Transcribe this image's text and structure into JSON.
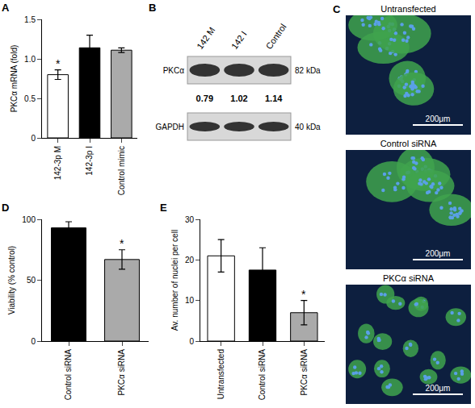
{
  "chart_data": [
    {
      "panel": "A",
      "type": "bar",
      "categories": [
        "142-3p M",
        "142-3p I",
        "Control mimic"
      ],
      "values": [
        0.8,
        1.14,
        1.11
      ],
      "error": [
        0.06,
        0.16,
        0.03
      ],
      "colors": [
        "#ffffff",
        "#000000",
        "#aaaaaa"
      ],
      "y_label": "PKCα mRNA (fold)",
      "ylim": [
        0,
        1.5
      ],
      "yticks": [
        0,
        0.5,
        {
          "value": 1,
          "label": "1.0"
        },
        1.5
      ],
      "annotations": [
        {
          "category": "142-3p M",
          "text": "*"
        }
      ],
      "grid": false
    },
    {
      "panel": "D",
      "type": "bar",
      "categories": [
        "Control siRNA",
        "PKCα siRNA"
      ],
      "values": [
        93,
        67
      ],
      "error": [
        5,
        8
      ],
      "colors": [
        "#000000",
        "#aaaaaa"
      ],
      "y_label": "Viability (% control)",
      "ylim": [
        0,
        100
      ],
      "yticks": [
        0,
        50,
        100
      ],
      "annotations": [
        {
          "category": "PKCα siRNA",
          "text": "*"
        }
      ],
      "grid": false
    },
    {
      "panel": "E",
      "type": "bar",
      "categories": [
        "Untransfected",
        "Control siRNA",
        "PKCα siRNA"
      ],
      "values": [
        21,
        17.5,
        7
      ],
      "error": [
        4,
        5.5,
        3
      ],
      "colors": [
        "#ffffff",
        "#000000",
        "#aaaaaa"
      ],
      "y_label": "Av. number of nuclei per cell",
      "ylim": [
        0,
        30
      ],
      "yticks": [
        0,
        10,
        20,
        30
      ],
      "annotations": [
        {
          "category": "PKCα siRNA",
          "text": "*"
        }
      ],
      "grid": false
    }
  ],
  "blot": {
    "panel": "B",
    "lanes": [
      "142 M",
      "142 I",
      "Control"
    ],
    "rows": [
      {
        "protein": "PKCα",
        "size": "82 kDa"
      },
      {
        "protein": "GAPDH",
        "size": "40 kDa"
      }
    ],
    "quantification": [
      0.79,
      1.02,
      1.14
    ]
  },
  "micrographs": {
    "panel": "C",
    "images": [
      {
        "label": "Untransfected"
      },
      {
        "label": "Control siRNA"
      },
      {
        "label": "PKCα siRNA"
      }
    ],
    "scale_bar": "200μm"
  }
}
